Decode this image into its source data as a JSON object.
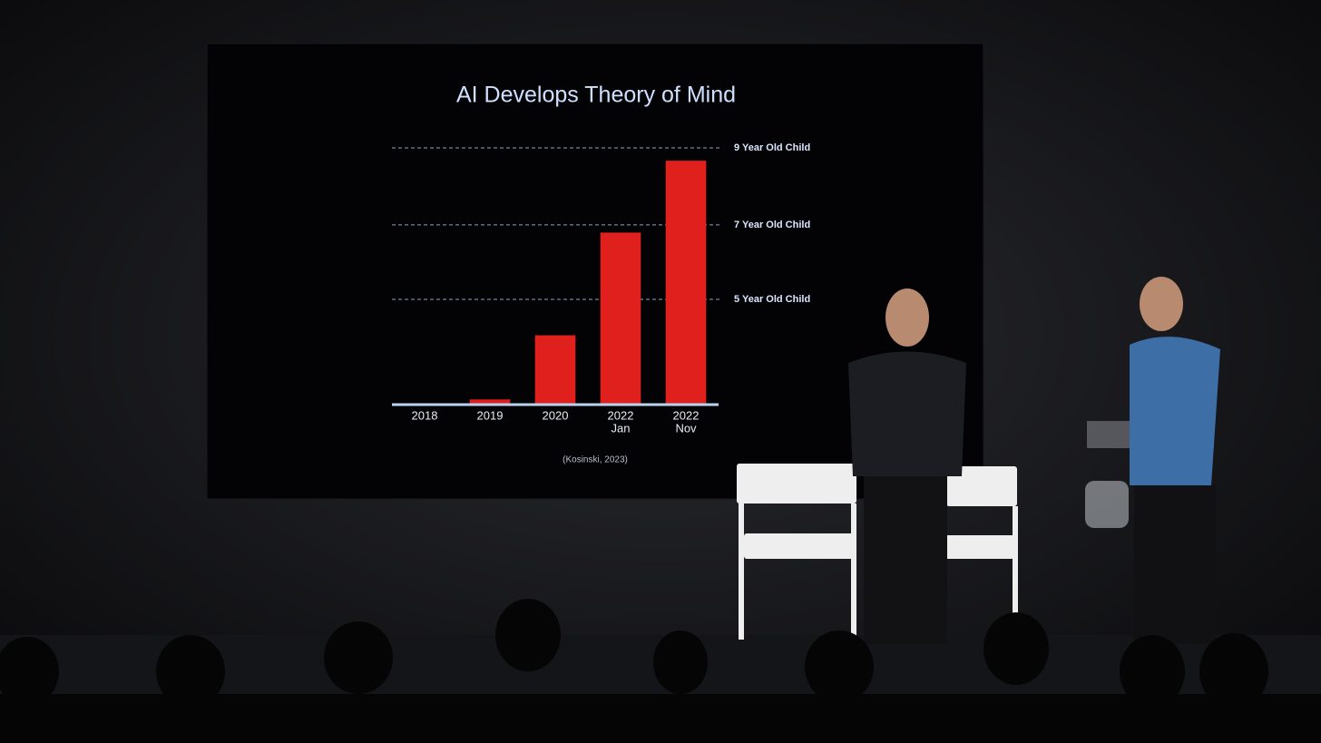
{
  "chart_data": {
    "type": "bar",
    "title": "AI Develops Theory of Mind",
    "categories": [
      [
        "2018"
      ],
      [
        "2019"
      ],
      [
        "2020"
      ],
      [
        "2022",
        "Jan"
      ],
      [
        "2022",
        "Nov"
      ]
    ],
    "values": [
      0,
      2,
      27,
      67,
      95
    ],
    "color": "#e0201c",
    "ylim": [
      0,
      100
    ],
    "yticks": [
      {
        "value": 41,
        "label": "5 Year Old Child"
      },
      {
        "value": 70,
        "label": "7 Year Old Child"
      },
      {
        "value": 100,
        "label": "9 Year Old Child"
      }
    ],
    "grid": true,
    "source": "(Kosinski, 2023)"
  }
}
